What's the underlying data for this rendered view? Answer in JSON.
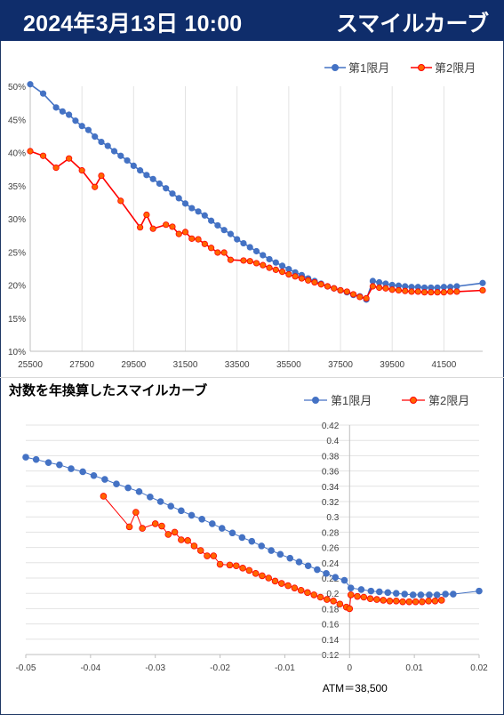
{
  "header": {
    "date": "2024年3月13日 10:00",
    "title": "スマイルカーブ"
  },
  "colors": {
    "series1": "#4472c4",
    "series2": "#ff0000",
    "series2_marker": "#ff6600",
    "header_bg": "#0f2d6b"
  },
  "chart_data": [
    {
      "type": "line",
      "title": "",
      "legend_position": "top-right",
      "xlim": [
        25500,
        43000
      ],
      "ylim": [
        0.1,
        0.5
      ],
      "x_ticks": [
        "25500",
        "27500",
        "29500",
        "31500",
        "33500",
        "35500",
        "37500",
        "39500",
        "41500"
      ],
      "y_ticks": [
        "10%",
        "15%",
        "20%",
        "25%",
        "30%",
        "35%",
        "40%",
        "45%",
        "50%"
      ],
      "grid": "vertical",
      "series": [
        {
          "name": "第1限月",
          "points": [
            [
              25500,
              0.503
            ],
            [
              26000,
              0.489
            ],
            [
              26500,
              0.468
            ],
            [
              26750,
              0.462
            ],
            [
              27000,
              0.457
            ],
            [
              27250,
              0.448
            ],
            [
              27500,
              0.44
            ],
            [
              27750,
              0.434
            ],
            [
              28000,
              0.424
            ],
            [
              28250,
              0.416
            ],
            [
              28500,
              0.41
            ],
            [
              28750,
              0.402
            ],
            [
              29000,
              0.395
            ],
            [
              29250,
              0.388
            ],
            [
              29500,
              0.38
            ],
            [
              29750,
              0.373
            ],
            [
              30000,
              0.366
            ],
            [
              30250,
              0.36
            ],
            [
              30500,
              0.353
            ],
            [
              30750,
              0.346
            ],
            [
              31000,
              0.338
            ],
            [
              31250,
              0.331
            ],
            [
              31500,
              0.323
            ],
            [
              31750,
              0.316
            ],
            [
              32000,
              0.311
            ],
            [
              32250,
              0.305
            ],
            [
              32500,
              0.297
            ],
            [
              32750,
              0.29
            ],
            [
              33000,
              0.283
            ],
            [
              33250,
              0.277
            ],
            [
              33500,
              0.269
            ],
            [
              33750,
              0.263
            ],
            [
              34000,
              0.257
            ],
            [
              34250,
              0.251
            ],
            [
              34500,
              0.245
            ],
            [
              34750,
              0.239
            ],
            [
              35000,
              0.234
            ],
            [
              35250,
              0.229
            ],
            [
              35500,
              0.224
            ],
            [
              35750,
              0.219
            ],
            [
              36000,
              0.215
            ],
            [
              36250,
              0.21
            ],
            [
              36500,
              0.206
            ],
            [
              36750,
              0.202
            ],
            [
              37000,
              0.198
            ],
            [
              37250,
              0.195
            ],
            [
              37500,
              0.192
            ],
            [
              37750,
              0.189
            ],
            [
              38000,
              0.185
            ],
            [
              38250,
              0.183
            ],
            [
              38500,
              0.178
            ],
            [
              38750,
              0.206
            ],
            [
              39000,
              0.204
            ],
            [
              39250,
              0.202
            ],
            [
              39500,
              0.2
            ],
            [
              39750,
              0.199
            ],
            [
              40000,
              0.198
            ],
            [
              40250,
              0.197
            ],
            [
              40500,
              0.197
            ],
            [
              40750,
              0.196
            ],
            [
              41000,
              0.196
            ],
            [
              41250,
              0.196
            ],
            [
              41500,
              0.197
            ],
            [
              41750,
              0.197
            ],
            [
              42000,
              0.198
            ],
            [
              43000,
              0.203
            ]
          ]
        },
        {
          "name": "第2限月",
          "points": [
            [
              25500,
              0.402
            ],
            [
              26000,
              0.395
            ],
            [
              26500,
              0.377
            ],
            [
              27000,
              0.391
            ],
            [
              27500,
              0.373
            ],
            [
              28000,
              0.348
            ],
            [
              28250,
              0.365
            ],
            [
              29000,
              0.327
            ],
            [
              29750,
              0.287
            ],
            [
              30000,
              0.306
            ],
            [
              30250,
              0.285
            ],
            [
              30750,
              0.291
            ],
            [
              31000,
              0.288
            ],
            [
              31250,
              0.277
            ],
            [
              31500,
              0.28
            ],
            [
              31750,
              0.27
            ],
            [
              32000,
              0.269
            ],
            [
              32250,
              0.262
            ],
            [
              32500,
              0.256
            ],
            [
              32750,
              0.249
            ],
            [
              33000,
              0.249
            ],
            [
              33250,
              0.238
            ],
            [
              33750,
              0.237
            ],
            [
              34000,
              0.236
            ],
            [
              34250,
              0.233
            ],
            [
              34500,
              0.23
            ],
            [
              34750,
              0.226
            ],
            [
              35000,
              0.223
            ],
            [
              35250,
              0.22
            ],
            [
              35500,
              0.216
            ],
            [
              35750,
              0.213
            ],
            [
              36000,
              0.21
            ],
            [
              36250,
              0.207
            ],
            [
              36500,
              0.204
            ],
            [
              36750,
              0.201
            ],
            [
              37000,
              0.198
            ],
            [
              37250,
              0.195
            ],
            [
              37500,
              0.192
            ],
            [
              37750,
              0.19
            ],
            [
              38000,
              0.186
            ],
            [
              38250,
              0.182
            ],
            [
              38500,
              0.18
            ],
            [
              38750,
              0.198
            ],
            [
              39000,
              0.196
            ],
            [
              39250,
              0.195
            ],
            [
              39500,
              0.193
            ],
            [
              39750,
              0.192
            ],
            [
              40000,
              0.191
            ],
            [
              40250,
              0.19
            ],
            [
              40500,
              0.19
            ],
            [
              40750,
              0.189
            ],
            [
              41000,
              0.189
            ],
            [
              41250,
              0.189
            ],
            [
              41500,
              0.189
            ],
            [
              41750,
              0.19
            ],
            [
              42000,
              0.19
            ],
            [
              43000,
              0.192
            ]
          ]
        }
      ]
    },
    {
      "type": "scatter",
      "title": "対数を年換算したスマイルカーブ",
      "legend_position": "top-right",
      "xlim": [
        -0.05,
        0.02
      ],
      "ylim": [
        0.12,
        0.42
      ],
      "x_ticks": [
        "-0.05",
        "-0.04",
        "-0.03",
        "-0.02",
        "-0.01",
        "0",
        "0.01",
        "0.02"
      ],
      "y_ticks": [
        "0.12",
        "0.14",
        "0.16",
        "0.18",
        "0.2",
        "0.22",
        "0.24",
        "0.26",
        "0.28",
        "0.3",
        "0.32",
        "0.34",
        "0.36",
        "0.38",
        "0.4",
        "0.42"
      ],
      "grid": "horizontal",
      "annotation": "ATM＝38,500",
      "series": [
        {
          "name": "第1限月",
          "points": [
            [
              -0.05,
              0.378
            ],
            [
              -0.0484,
              0.375
            ],
            [
              -0.0465,
              0.371
            ],
            [
              -0.0448,
              0.368
            ],
            [
              -0.043,
              0.363
            ],
            [
              -0.0412,
              0.359
            ],
            [
              -0.0395,
              0.354
            ],
            [
              -0.0378,
              0.349
            ],
            [
              -0.036,
              0.343
            ],
            [
              -0.0342,
              0.338
            ],
            [
              -0.0325,
              0.333
            ],
            [
              -0.0308,
              0.326
            ],
            [
              -0.0292,
              0.32
            ],
            [
              -0.0276,
              0.314
            ],
            [
              -0.026,
              0.308
            ],
            [
              -0.0244,
              0.302
            ],
            [
              -0.0228,
              0.297
            ],
            [
              -0.0212,
              0.291
            ],
            [
              -0.0197,
              0.285
            ],
            [
              -0.0181,
              0.279
            ],
            [
              -0.0166,
              0.273
            ],
            [
              -0.0151,
              0.268
            ],
            [
              -0.0136,
              0.262
            ],
            [
              -0.0121,
              0.256
            ],
            [
              -0.0107,
              0.251
            ],
            [
              -0.0092,
              0.246
            ],
            [
              -0.0078,
              0.241
            ],
            [
              -0.0064,
              0.236
            ],
            [
              -0.005,
              0.231
            ],
            [
              -0.0036,
              0.226
            ],
            [
              -0.0022,
              0.221
            ],
            [
              -0.0008,
              0.217
            ],
            [
              0.0002,
              0.207
            ],
            [
              0.0018,
              0.205
            ],
            [
              0.0033,
              0.203
            ],
            [
              0.0046,
              0.202
            ],
            [
              0.0059,
              0.201
            ],
            [
              0.0072,
              0.2
            ],
            [
              0.0085,
              0.199
            ],
            [
              0.0098,
              0.198
            ],
            [
              0.011,
              0.198
            ],
            [
              0.0123,
              0.198
            ],
            [
              0.0135,
              0.198
            ],
            [
              0.0148,
              0.199
            ],
            [
              0.016,
              0.199
            ],
            [
              0.02,
              0.203
            ]
          ]
        },
        {
          "name": "第2限月",
          "points": [
            [
              -0.038,
              0.327
            ],
            [
              -0.034,
              0.287
            ],
            [
              -0.033,
              0.306
            ],
            [
              -0.032,
              0.285
            ],
            [
              -0.03,
              0.291
            ],
            [
              -0.029,
              0.288
            ],
            [
              -0.028,
              0.277
            ],
            [
              -0.027,
              0.28
            ],
            [
              -0.026,
              0.27
            ],
            [
              -0.025,
              0.269
            ],
            [
              -0.024,
              0.262
            ],
            [
              -0.023,
              0.256
            ],
            [
              -0.022,
              0.249
            ],
            [
              -0.021,
              0.249
            ],
            [
              -0.02,
              0.238
            ],
            [
              -0.0185,
              0.237
            ],
            [
              -0.0175,
              0.236
            ],
            [
              -0.0165,
              0.233
            ],
            [
              -0.0155,
              0.23
            ],
            [
              -0.0145,
              0.226
            ],
            [
              -0.0135,
              0.223
            ],
            [
              -0.0125,
              0.22
            ],
            [
              -0.0115,
              0.216
            ],
            [
              -0.0105,
              0.213
            ],
            [
              -0.0095,
              0.21
            ],
            [
              -0.0085,
              0.207
            ],
            [
              -0.0075,
              0.204
            ],
            [
              -0.0065,
              0.201
            ],
            [
              -0.0055,
              0.198
            ],
            [
              -0.0045,
              0.195
            ],
            [
              -0.0035,
              0.192
            ],
            [
              -0.0025,
              0.19
            ],
            [
              -0.0015,
              0.186
            ],
            [
              -0.0005,
              0.182
            ],
            [
              0.0,
              0.18
            ],
            [
              0.0002,
              0.198
            ],
            [
              0.0012,
              0.196
            ],
            [
              0.0022,
              0.195
            ],
            [
              0.0032,
              0.193
            ],
            [
              0.0042,
              0.192
            ],
            [
              0.0052,
              0.191
            ],
            [
              0.0062,
              0.19
            ],
            [
              0.0072,
              0.19
            ],
            [
              0.0082,
              0.189
            ],
            [
              0.0092,
              0.189
            ],
            [
              0.0102,
              0.189
            ],
            [
              0.0112,
              0.189
            ],
            [
              0.0122,
              0.19
            ],
            [
              0.0132,
              0.19
            ],
            [
              0.0142,
              0.191
            ]
          ]
        }
      ]
    }
  ]
}
